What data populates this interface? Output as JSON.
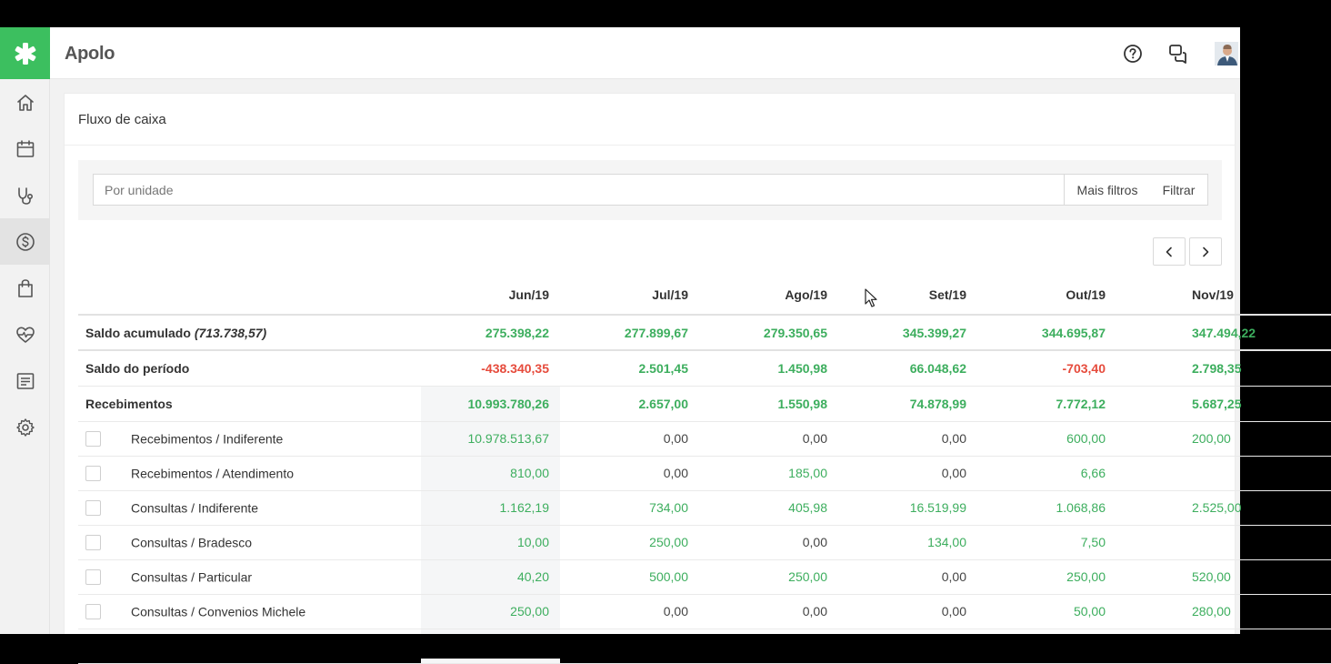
{
  "app": {
    "brand": "Apolo",
    "colors": {
      "accent": "#3cbf5f",
      "positive": "#3dae5e",
      "negative": "#e64b3c"
    }
  },
  "topbar": {
    "icons": [
      "help-icon",
      "chat-icon",
      "user-avatar"
    ]
  },
  "sidebar": {
    "items": [
      {
        "icon": "home-icon"
      },
      {
        "icon": "calendar-icon"
      },
      {
        "icon": "stethoscope-icon"
      },
      {
        "icon": "dollar-icon",
        "active": true
      },
      {
        "icon": "shopping-bag-icon"
      },
      {
        "icon": "heart-rate-icon"
      },
      {
        "icon": "report-icon"
      },
      {
        "icon": "gear-icon"
      }
    ]
  },
  "page": {
    "title": "Fluxo de caixa"
  },
  "filters": {
    "placeholder": "Por unidade",
    "more_filters_label": "Mais filtros",
    "filter_label": "Filtrar"
  },
  "table": {
    "columns": [
      "Jun/19",
      "Jul/19",
      "Ago/19",
      "Set/19",
      "Out/19",
      "Nov/19"
    ],
    "summary_rows": [
      {
        "label": "Saldo acumulado",
        "label_extra": "(713.738,57)",
        "values": [
          "275.398,22",
          "277.899,67",
          "279.350,65",
          "345.399,27",
          "344.695,87",
          "347.494,22"
        ],
        "signs": [
          "pos",
          "pos",
          "pos",
          "pos",
          "pos",
          "pos"
        ]
      },
      {
        "label": "Saldo do período",
        "values": [
          "-438.340,35",
          "2.501,45",
          "1.450,98",
          "66.048,62",
          "-703,40",
          "2.798,35"
        ],
        "signs": [
          "neg",
          "pos",
          "pos",
          "pos",
          "neg",
          "pos"
        ]
      },
      {
        "label": "Recebimentos",
        "values": [
          "10.993.780,26",
          "2.657,00",
          "1.550,98",
          "74.878,99",
          "7.772,12",
          "5.687,25"
        ],
        "signs": [
          "pos",
          "pos",
          "pos",
          "pos",
          "pos",
          "pos"
        ]
      }
    ],
    "detail_rows": [
      {
        "label": "Recebimentos / Indiferente",
        "values": [
          "10.978.513,67",
          "0,00",
          "0,00",
          "0,00",
          "600,00",
          "200,00"
        ],
        "signs": [
          "pos",
          "zero",
          "zero",
          "zero",
          "pos",
          "pos"
        ]
      },
      {
        "label": "Recebimentos / Atendimento",
        "values": [
          "810,00",
          "0,00",
          "185,00",
          "0,00",
          "6,66",
          ""
        ],
        "signs": [
          "pos",
          "zero",
          "pos",
          "zero",
          "pos",
          "zero"
        ]
      },
      {
        "label": "Consultas / Indiferente",
        "values": [
          "1.162,19",
          "734,00",
          "405,98",
          "16.519,99",
          "1.068,86",
          "2.525,00"
        ],
        "signs": [
          "pos",
          "pos",
          "pos",
          "pos",
          "pos",
          "pos"
        ]
      },
      {
        "label": "Consultas / Bradesco",
        "values": [
          "10,00",
          "250,00",
          "0,00",
          "134,00",
          "7,50",
          ""
        ],
        "signs": [
          "pos",
          "pos",
          "zero",
          "pos",
          "pos",
          "zero"
        ]
      },
      {
        "label": "Consultas / Particular",
        "values": [
          "40,20",
          "500,00",
          "250,00",
          "0,00",
          "250,00",
          "520,00"
        ],
        "signs": [
          "pos",
          "pos",
          "pos",
          "zero",
          "pos",
          "pos"
        ]
      },
      {
        "label": "Consultas / Convenios Michele",
        "values": [
          "250,00",
          "0,00",
          "0,00",
          "0,00",
          "50,00",
          "280,00"
        ],
        "signs": [
          "pos",
          "zero",
          "zero",
          "zero",
          "pos",
          "pos"
        ]
      },
      {
        "label": "",
        "values": [
          "",
          "",
          "",
          "",
          "",
          ""
        ],
        "signs": [
          "zero",
          "zero",
          "zero",
          "zero",
          "zero",
          "zero"
        ]
      }
    ]
  }
}
